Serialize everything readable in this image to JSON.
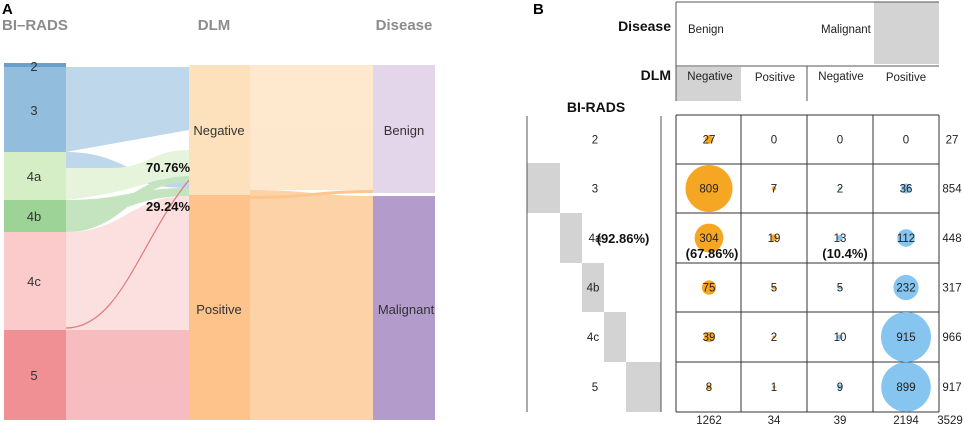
{
  "panel_a": {
    "label": "A",
    "headers": {
      "birads": "BI–RADS",
      "dlm": "DLM",
      "disease": "Disease"
    },
    "birads_nodes": [
      {
        "label": "2",
        "color": "#6a9fcb"
      },
      {
        "label": "3",
        "color": "#93bddd"
      },
      {
        "label": "4a",
        "color": "#d6eec6"
      },
      {
        "label": "4b",
        "color": "#9dd397"
      },
      {
        "label": "4c",
        "color": "#fbcaca"
      },
      {
        "label": "5",
        "color": "#f19094"
      }
    ],
    "dlm_nodes": [
      {
        "label": "Negative",
        "color": "#fde1bd"
      },
      {
        "label": "Positive",
        "color": "#fdc38a"
      }
    ],
    "disease_nodes": [
      {
        "label": "Benign",
        "color": "#e3d6ea"
      },
      {
        "label": "Malignant",
        "color": "#b39ccc"
      }
    ],
    "pct_top": "70.76%",
    "pct_bottom": "29.24%"
  },
  "panel_b": {
    "label": "B",
    "headers": {
      "disease": "Disease",
      "dlm": "DLM",
      "birads": "BI-RADS"
    },
    "disease_cols": [
      "Benign",
      "Malignant"
    ],
    "dlm_cols": [
      "Negative",
      "Positive",
      "Negative",
      "Positive"
    ],
    "rows": [
      {
        "label": "2",
        "values": [
          "27",
          "0",
          "0",
          "0"
        ],
        "total": "27"
      },
      {
        "label": "3",
        "values": [
          "809",
          "7",
          "2",
          "36"
        ],
        "total": "854"
      },
      {
        "label": "4a",
        "values": [
          "304",
          "19",
          "13",
          "112"
        ],
        "total": "448"
      },
      {
        "label": "4b",
        "values": [
          "75",
          "5",
          "5",
          "232"
        ],
        "total": "317"
      },
      {
        "label": "4c",
        "values": [
          "39",
          "2",
          "10",
          "915"
        ],
        "total": "966"
      },
      {
        "label": "5",
        "values": [
          "8",
          "1",
          "9",
          "899"
        ],
        "total": "917"
      }
    ],
    "col_totals": [
      "1262",
      "34",
      "39",
      "2194"
    ],
    "grand_total": "3529",
    "annot_row": "(92.86%)",
    "annot_benign": "(67.86%)",
    "annot_malignant": "(10.4%)",
    "colors": {
      "benign_bubble": "#f5a623",
      "malignant_bubble": "#85c5f0",
      "shade": "#d3d3d3"
    }
  }
}
